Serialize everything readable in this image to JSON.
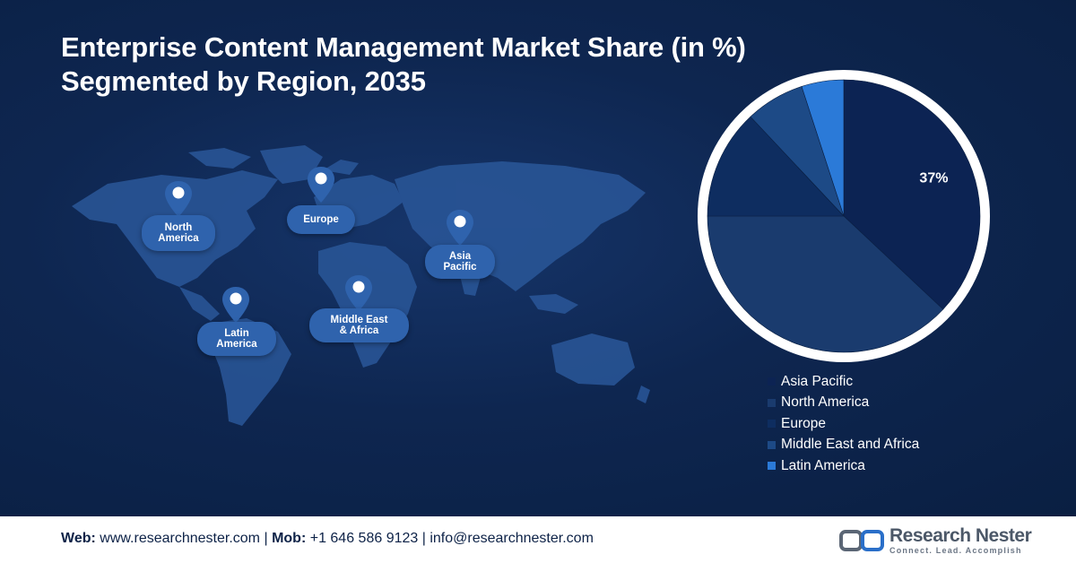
{
  "title_line1": "Enterprise Content Management Market Share (in %)",
  "title_line2": "Segmented by Region, 2035",
  "map_regions": [
    {
      "id": "north-america",
      "label": "North America",
      "line1": "North",
      "line2": "America"
    },
    {
      "id": "europe",
      "label": "Europe",
      "line1": "Europe",
      "line2": ""
    },
    {
      "id": "asia-pacific",
      "label": "Asia Pacific",
      "line1": "Asia",
      "line2": "Pacific"
    },
    {
      "id": "latin-america",
      "label": "Latin America",
      "line1": "Latin",
      "line2": "America"
    },
    {
      "id": "middle-east-africa",
      "label": "Middle East & Africa",
      "line1": "Middle East",
      "line2": "& Africa"
    }
  ],
  "chart_data": {
    "type": "pie",
    "title": "Enterprise Content Management Market Share (in %) Segmented by Region, 2035",
    "categories": [
      "Asia Pacific",
      "North America",
      "Europe",
      "Middle East and Africa",
      "Latin America"
    ],
    "values": [
      37,
      38,
      13,
      7,
      5
    ],
    "data_labels": [
      "37%",
      "",
      "",
      "",
      ""
    ],
    "colors": [
      "#0c2353",
      "#1a3b6e",
      "#0e2d60",
      "#1d4a86",
      "#2b7ad8"
    ],
    "legend_position": "bottom-right"
  },
  "footer": {
    "web_label": "Web:",
    "web_value": "www.researchnester.com",
    "mob_label": "Mob:",
    "mob_value": "+1 646 586 9123",
    "email_value": "info@researchnester.com",
    "separator": "|"
  },
  "logo": {
    "name": "Research Nester",
    "tagline": "Connect. Lead. Accomplish"
  }
}
